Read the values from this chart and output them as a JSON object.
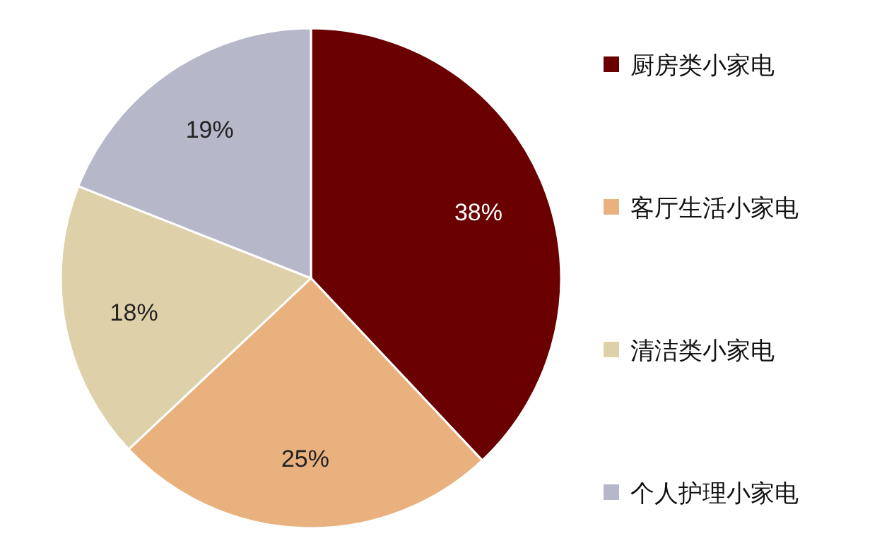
{
  "chart_data": {
    "type": "pie",
    "categories": [
      "厨房类小家电",
      "客厅生活小家电",
      "清洁类小家电",
      "个人护理小家电"
    ],
    "values": [
      38,
      25,
      18,
      19
    ],
    "colors": [
      "#6b0000",
      "#e9b17e",
      "#ded1a9",
      "#b6b7c9"
    ],
    "value_labels": [
      "38%",
      "25%",
      "18%",
      "19%"
    ],
    "legend": "right"
  }
}
